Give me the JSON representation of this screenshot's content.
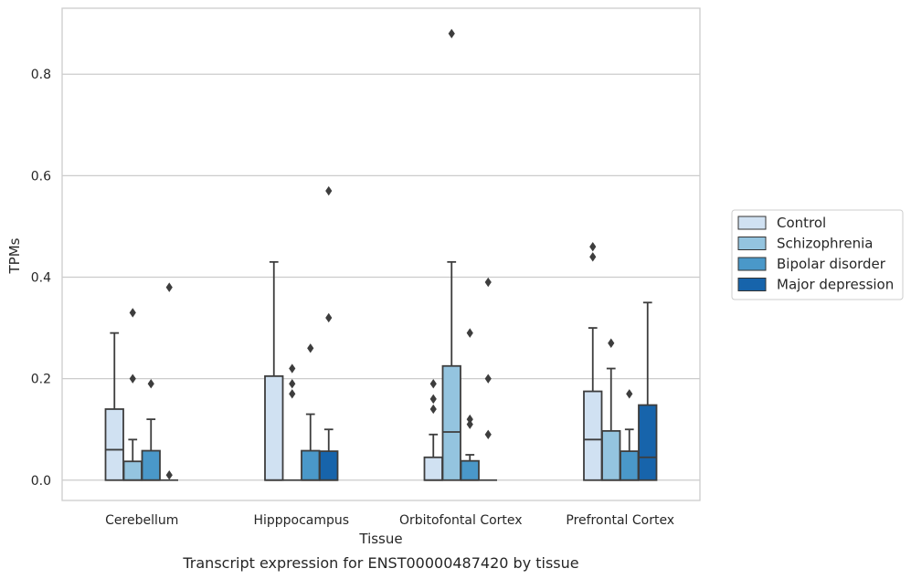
{
  "caption": "Transcript expression for ENST00000487420 by tissue",
  "chart_data": {
    "type": "boxplot",
    "title": "",
    "xlabel": "Tissue",
    "ylabel": "TPMs",
    "ylim": [
      -0.04,
      0.93
    ],
    "yticks": [
      0.0,
      0.2,
      0.4,
      0.6,
      0.8
    ],
    "ytick_labels": [
      "0.0",
      "0.2",
      "0.4",
      "0.6",
      "0.8"
    ],
    "grid": "horizontal",
    "legend_placement": "right",
    "categories": [
      "Cerebellum",
      "Hipppocampus",
      "Orbitofontal Cortex",
      "Prefrontal Cortex"
    ],
    "series": [
      {
        "name": "Control",
        "color": "#d0e1f2",
        "boxes": [
          {
            "whislo": 0,
            "q1": 0,
            "med": 0.06,
            "q3": 0.14,
            "whishi": 0.29,
            "fliers": []
          },
          {
            "whislo": 0,
            "q1": 0,
            "med": 0,
            "q3": 0.205,
            "whishi": 0.43,
            "fliers": []
          },
          {
            "whislo": 0,
            "q1": 0,
            "med": 0,
            "q3": 0.045,
            "whishi": 0.09,
            "fliers": [
              0.14,
              0.16,
              0.19
            ]
          },
          {
            "whislo": 0,
            "q1": 0,
            "med": 0.08,
            "q3": 0.175,
            "whishi": 0.3,
            "fliers": [
              0.44,
              0.46
            ]
          }
        ]
      },
      {
        "name": "Schizophrenia",
        "color": "#94c4df",
        "boxes": [
          {
            "whislo": 0,
            "q1": 0,
            "med": 0,
            "q3": 0.037,
            "whishi": 0.08,
            "fliers": [
              0.2,
              0.33
            ]
          },
          {
            "whislo": 0,
            "q1": 0,
            "med": 0,
            "q3": 0,
            "whishi": 0,
            "fliers": [
              0.17,
              0.19,
              0.22
            ]
          },
          {
            "whislo": 0,
            "q1": 0,
            "med": 0.095,
            "q3": 0.225,
            "whishi": 0.43,
            "fliers": [
              0.88
            ]
          },
          {
            "whislo": 0,
            "q1": 0,
            "med": 0,
            "q3": 0.097,
            "whishi": 0.22,
            "fliers": [
              0.27
            ]
          }
        ]
      },
      {
        "name": "Bipolar disorder",
        "color": "#4a98c9",
        "boxes": [
          {
            "whislo": 0,
            "q1": 0,
            "med": 0,
            "q3": 0.058,
            "whishi": 0.12,
            "fliers": [
              0.19
            ]
          },
          {
            "whislo": 0,
            "q1": 0,
            "med": 0,
            "q3": 0.058,
            "whishi": 0.13,
            "fliers": [
              0.26
            ]
          },
          {
            "whislo": 0,
            "q1": 0,
            "med": 0,
            "q3": 0.038,
            "whishi": 0.05,
            "fliers": [
              0.11,
              0.12,
              0.29
            ]
          },
          {
            "whislo": 0,
            "q1": 0,
            "med": 0,
            "q3": 0.057,
            "whishi": 0.1,
            "fliers": [
              0.17
            ]
          }
        ]
      },
      {
        "name": "Major depression",
        "color": "#1764ab",
        "boxes": [
          {
            "whislo": 0,
            "q1": 0,
            "med": 0,
            "q3": 0,
            "whishi": 0,
            "fliers": [
              0.01,
              0.38
            ]
          },
          {
            "whislo": 0,
            "q1": 0,
            "med": 0,
            "q3": 0.057,
            "whishi": 0.1,
            "fliers": [
              0.32,
              0.57
            ]
          },
          {
            "whislo": 0,
            "q1": 0,
            "med": 0,
            "q3": 0,
            "whishi": 0,
            "fliers": [
              0.09,
              0.2,
              0.39
            ]
          },
          {
            "whislo": 0,
            "q1": 0,
            "med": 0.045,
            "q3": 0.148,
            "whishi": 0.35,
            "fliers": []
          }
        ]
      }
    ]
  }
}
